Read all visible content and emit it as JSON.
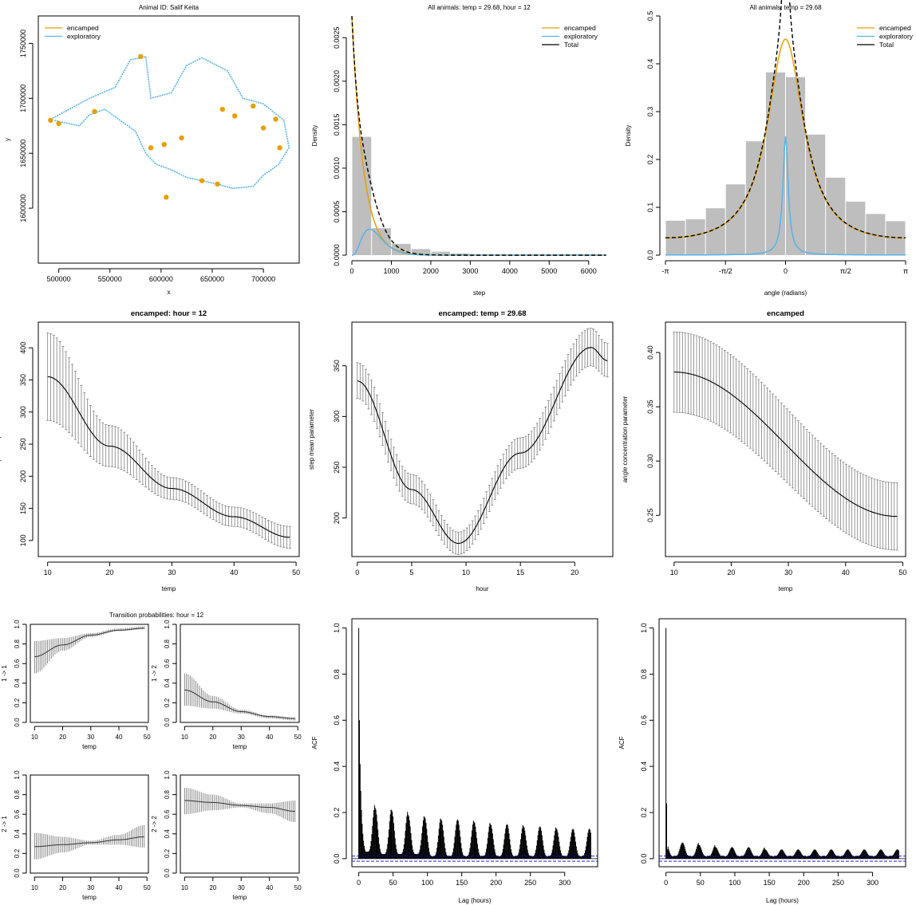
{
  "colors": {
    "encamped": "#E69F00",
    "exploratory": "#56B4E9",
    "total": "#000000",
    "hist": "#BEBEBE",
    "ci": "#7F7F7F",
    "acf_bound": "#0000CC"
  },
  "chart_data": [
    {
      "id": "track",
      "type": "scatter",
      "title": "Animal ID: Salif Keita",
      "xlabel": "x",
      "ylabel": "y",
      "xlim": [
        480000,
        735000
      ],
      "ylim": [
        1550000,
        1775000
      ],
      "xticks": [
        500000,
        550000,
        600000,
        650000,
        700000
      ],
      "yticks": [
        1600000,
        1650000,
        1700000,
        1750000
      ],
      "legend": {
        "position": "top-left",
        "entries": [
          "encamped",
          "exploratory"
        ]
      },
      "series": [
        {
          "name": "exploratory",
          "x": [
            490000,
            510000,
            530000,
            555000,
            570000,
            585000,
            590000,
            610000,
            625000,
            640000,
            665000,
            680000,
            700000,
            720000,
            725000,
            715000,
            700000,
            690000,
            670000,
            655000,
            640000,
            625000,
            610000,
            595000,
            585000,
            575000,
            560000,
            545000,
            530000,
            520000,
            505000,
            495000
          ],
          "y": [
            1680000,
            1690000,
            1700000,
            1710000,
            1735000,
            1738000,
            1700000,
            1705000,
            1730000,
            1737000,
            1725000,
            1700000,
            1695000,
            1680000,
            1655000,
            1640000,
            1630000,
            1620000,
            1618000,
            1622000,
            1625000,
            1628000,
            1635000,
            1640000,
            1650000,
            1670000,
            1680000,
            1690000,
            1685000,
            1675000,
            1678000,
            1680000
          ]
        },
        {
          "name": "encamped",
          "x": [
            492000,
            500000,
            535000,
            580000,
            590000,
            603000,
            620000,
            660000,
            672000,
            690000,
            700000,
            712000,
            716000,
            655000,
            640000,
            605000
          ],
          "y": [
            1680000,
            1677000,
            1688000,
            1738000,
            1655000,
            1658000,
            1664000,
            1690000,
            1684000,
            1693000,
            1673000,
            1681000,
            1655000,
            1622000,
            1625000,
            1610000
          ]
        }
      ]
    },
    {
      "id": "step_density",
      "type": "area",
      "title": "All animals: temp = 29.68, hour = 12",
      "xlabel": "step",
      "ylabel": "Density",
      "xlim": [
        0,
        6450
      ],
      "ylim": [
        0,
        0.00275
      ],
      "xticks": [
        0,
        1000,
        2000,
        3000,
        4000,
        5000,
        6000
      ],
      "yticks": [
        "0.0000",
        "0.0005",
        "0.0010",
        "0.0015",
        "0.0020",
        "0.0025"
      ],
      "legend": {
        "position": "top-right",
        "entries": [
          "encamped",
          "exploratory",
          "Total"
        ]
      },
      "histogram": {
        "breaks": [
          0,
          500,
          1000,
          1500,
          2000,
          2500,
          3000,
          3500,
          4000,
          4500,
          5000,
          5500,
          6000,
          6500
        ],
        "density": [
          0.00136,
          0.00031,
          0.00013,
          7e-05,
          4e-05,
          2e-05,
          1e-05,
          5e-06,
          3e-06,
          2e-06,
          1e-06,
          1e-06,
          5e-07
        ]
      },
      "curves": {
        "encamped": {
          "dist": "exponential",
          "weight": 0.8,
          "mean": 290
        },
        "exploratory": {
          "dist": "gamma",
          "weight": 0.2,
          "mean": 600,
          "sd": 300
        }
      }
    },
    {
      "id": "angle_density",
      "type": "area",
      "title": "All animals: temp = 29.68",
      "xlabel": "angle (radians)",
      "ylabel": "Density",
      "xlim": [
        -3.1416,
        3.1416
      ],
      "ylim": [
        0,
        0.5
      ],
      "xticks": [
        "-π",
        "-π/2",
        "0",
        "π/2",
        "π"
      ],
      "yticks": [
        "0.0",
        "0.1",
        "0.2",
        "0.3",
        "0.4",
        "0.5"
      ],
      "legend": {
        "position": "top-right",
        "entries": [
          "encamped",
          "exploratory",
          "Total"
        ]
      },
      "histogram": {
        "density": [
          0.072,
          0.075,
          0.098,
          0.148,
          0.238,
          0.382,
          0.372,
          0.252,
          0.162,
          0.112,
          0.086,
          0.071
        ]
      },
      "curves": {
        "encamped": {
          "dist": "wrapped_cauchy",
          "rho": 0.56,
          "scale": 0.8
        },
        "exploratory": {
          "dist": "wrapped_cauchy",
          "rho": 0.92,
          "scale": 0.065
        }
      }
    },
    {
      "id": "enc_step_temp",
      "type": "line",
      "title": "encamped: hour = 12",
      "xlabel": "temp",
      "ylabel": "step mean parameter",
      "xlim": [
        8.5,
        50.5
      ],
      "ylim": [
        75,
        440
      ],
      "xticks": [
        10,
        20,
        30,
        40,
        50
      ],
      "yticks": [
        100,
        150,
        200,
        250,
        300,
        350,
        400
      ],
      "x": [
        10,
        20,
        30,
        40,
        49
      ],
      "y": [
        355,
        247,
        181,
        137,
        105
      ],
      "lower": [
        287,
        215,
        164,
        122,
        88
      ],
      "upper": [
        423,
        279,
        198,
        152,
        122
      ]
    },
    {
      "id": "enc_step_hour",
      "type": "line",
      "title": "encamped: temp = 29.68",
      "xlabel": "hour",
      "ylabel": "step mean parameter",
      "xlim": [
        -0.5,
        23.5
      ],
      "ylim": [
        162,
        393
      ],
      "xticks": [
        0,
        5,
        10,
        15,
        20
      ],
      "yticks": [
        200,
        250,
        300,
        350
      ],
      "x": [
        0,
        5,
        9.3,
        15,
        21.5,
        23
      ],
      "y": [
        335,
        228,
        175,
        264,
        368,
        355
      ],
      "lower": [
        318,
        214,
        164,
        249,
        350,
        339
      ],
      "upper": [
        353,
        243,
        186,
        279,
        387,
        372
      ]
    },
    {
      "id": "enc_angle_temp",
      "type": "line",
      "title": "encamped",
      "xlabel": "temp",
      "ylabel": "angle concentration parameter",
      "xlim": [
        8.5,
        50.5
      ],
      "ylim": [
        0.212,
        0.428
      ],
      "xticks": [
        10,
        20,
        30,
        40,
        50
      ],
      "yticks": [
        "0.25",
        "0.30",
        "0.35",
        "0.40"
      ],
      "x": [
        10,
        49
      ],
      "y": [
        0.382,
        0.249
      ],
      "lower": [
        0.345,
        0.218
      ],
      "upper": [
        0.419,
        0.28
      ]
    },
    {
      "id": "transition_probs",
      "type": "line",
      "title": "Transition probabilities: hour = 12",
      "panels": [
        {
          "ylabel": "1 -> 1",
          "xlabel": "temp",
          "x": [
            10,
            20,
            30,
            40,
            49
          ],
          "y": [
            0.67,
            0.79,
            0.89,
            0.94,
            0.96
          ],
          "lower": [
            0.5,
            0.73,
            0.87,
            0.93,
            0.95
          ],
          "upper": [
            0.83,
            0.86,
            0.91,
            0.96,
            0.98
          ]
        },
        {
          "ylabel": "1 -> 2",
          "xlabel": "temp",
          "x": [
            10,
            20,
            30,
            40,
            49
          ],
          "y": [
            0.33,
            0.21,
            0.11,
            0.06,
            0.04
          ],
          "lower": [
            0.17,
            0.14,
            0.09,
            0.04,
            0.02
          ],
          "upper": [
            0.5,
            0.27,
            0.13,
            0.07,
            0.05
          ]
        },
        {
          "ylabel": "2 -> 1",
          "xlabel": "temp",
          "x": [
            10,
            20,
            30,
            40,
            49
          ],
          "y": [
            0.27,
            0.29,
            0.31,
            0.34,
            0.37
          ],
          "lower": [
            0.14,
            0.21,
            0.29,
            0.29,
            0.26
          ],
          "upper": [
            0.41,
            0.37,
            0.33,
            0.39,
            0.49
          ]
        },
        {
          "ylabel": "2 -> 2",
          "xlabel": "temp",
          "x": [
            10,
            20,
            30,
            40,
            49
          ],
          "y": [
            0.74,
            0.72,
            0.69,
            0.67,
            0.63
          ],
          "lower": [
            0.6,
            0.64,
            0.67,
            0.61,
            0.52
          ],
          "upper": [
            0.87,
            0.8,
            0.71,
            0.71,
            0.74
          ]
        }
      ],
      "xlim": [
        8.5,
        50.5
      ],
      "ylim": [
        0,
        1
      ],
      "xticks": [
        10,
        20,
        30,
        40,
        50
      ],
      "yticks": [
        "0.0",
        "0.2",
        "0.4",
        "0.6",
        "0.8",
        "1.0"
      ]
    },
    {
      "id": "acf_step",
      "type": "bar",
      "xlabel": "Lag (hours)",
      "ylabel": "ACF",
      "xlim": [
        -10,
        348
      ],
      "ylim": [
        -0.035,
        1.04
      ],
      "xticks": [
        0,
        50,
        100,
        150,
        200,
        250,
        300
      ],
      "yticks": [
        "0.0",
        "0.2",
        "0.4",
        "0.6",
        "0.8",
        "1.0"
      ],
      "max_lag": 338,
      "bound": 0.011,
      "pattern": {
        "period": 24,
        "lag1": 0.6,
        "lag2": 0.41,
        "peaks": [
          0.24,
          0.22,
          0.21,
          0.19,
          0.18,
          0.17,
          0.17,
          0.16,
          0.15,
          0.15,
          0.14,
          0.14,
          0.13,
          0.13
        ],
        "troughs": [
          0.03,
          0.02,
          0.02,
          0.02,
          0.01,
          0.01,
          0.01,
          0.01,
          0.01,
          0.01,
          0.01,
          0.01,
          0.01,
          0.01
        ]
      }
    },
    {
      "id": "acf_angle",
      "type": "bar",
      "xlabel": "Lag (hours)",
      "ylabel": "ACF",
      "xlim": [
        -10,
        348
      ],
      "ylim": [
        -0.035,
        1.04
      ],
      "xticks": [
        0,
        50,
        100,
        150,
        200,
        250,
        300
      ],
      "yticks": [
        "0.0",
        "0.2",
        "0.4",
        "0.6",
        "0.8",
        "1.0"
      ],
      "max_lag": 338,
      "bound": 0.011,
      "pattern": {
        "period": 24,
        "lag1": 0.24,
        "lag2": 0.04,
        "peaks": [
          0.07,
          0.07,
          0.06,
          0.05,
          0.05,
          0.05,
          0.04,
          0.04,
          0.04,
          0.04,
          0.04,
          0.04,
          0.04,
          0.04
        ],
        "troughs": [
          0.01,
          0.01,
          0.01,
          0.01,
          0.01,
          0.01,
          0.01,
          0.01,
          0.01,
          0.01,
          0.01,
          0.01,
          0.01,
          0.01
        ]
      }
    }
  ]
}
